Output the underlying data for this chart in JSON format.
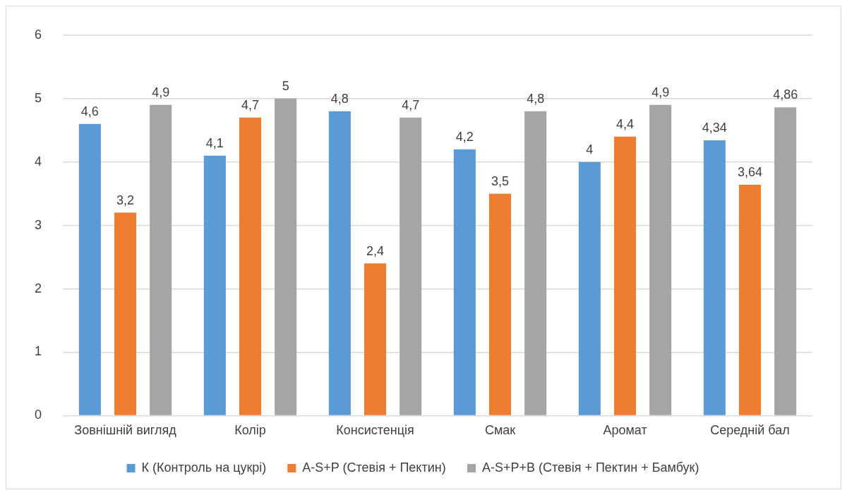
{
  "chart_data": {
    "type": "bar",
    "categories": [
      "Зовнішній вигляд",
      "Колір",
      "Консистенція",
      "Смак",
      "Аромат",
      "Середній бал"
    ],
    "series": [
      {
        "name": "К (Контроль на цукрі)",
        "color": "#5b9bd5",
        "values": [
          4.6,
          4.1,
          4.8,
          4.2,
          4,
          4.34
        ],
        "value_labels": [
          "4,6",
          "4,1",
          "4,8",
          "4,2",
          "4",
          "4,34"
        ]
      },
      {
        "name": "A-S+P (Стевія + Пектин)",
        "color": "#ed7d31",
        "values": [
          3.2,
          4.7,
          2.4,
          3.5,
          4.4,
          3.64
        ],
        "value_labels": [
          "3,2",
          "4,7",
          "2,4",
          "3,5",
          "4,4",
          "3,64"
        ]
      },
      {
        "name": "A-S+P+B (Стевія + Пектин + Бамбук)",
        "color": "#a5a5a5",
        "values": [
          4.9,
          5,
          4.7,
          4.8,
          4.9,
          4.86
        ],
        "value_labels": [
          "4,9",
          "5",
          "4,7",
          "4,8",
          "4,9",
          "4,86"
        ]
      }
    ],
    "ylim": [
      0,
      6
    ],
    "yticks": [
      0,
      1,
      2,
      3,
      4,
      5,
      6
    ],
    "grid": "y",
    "legend": "bottom"
  }
}
